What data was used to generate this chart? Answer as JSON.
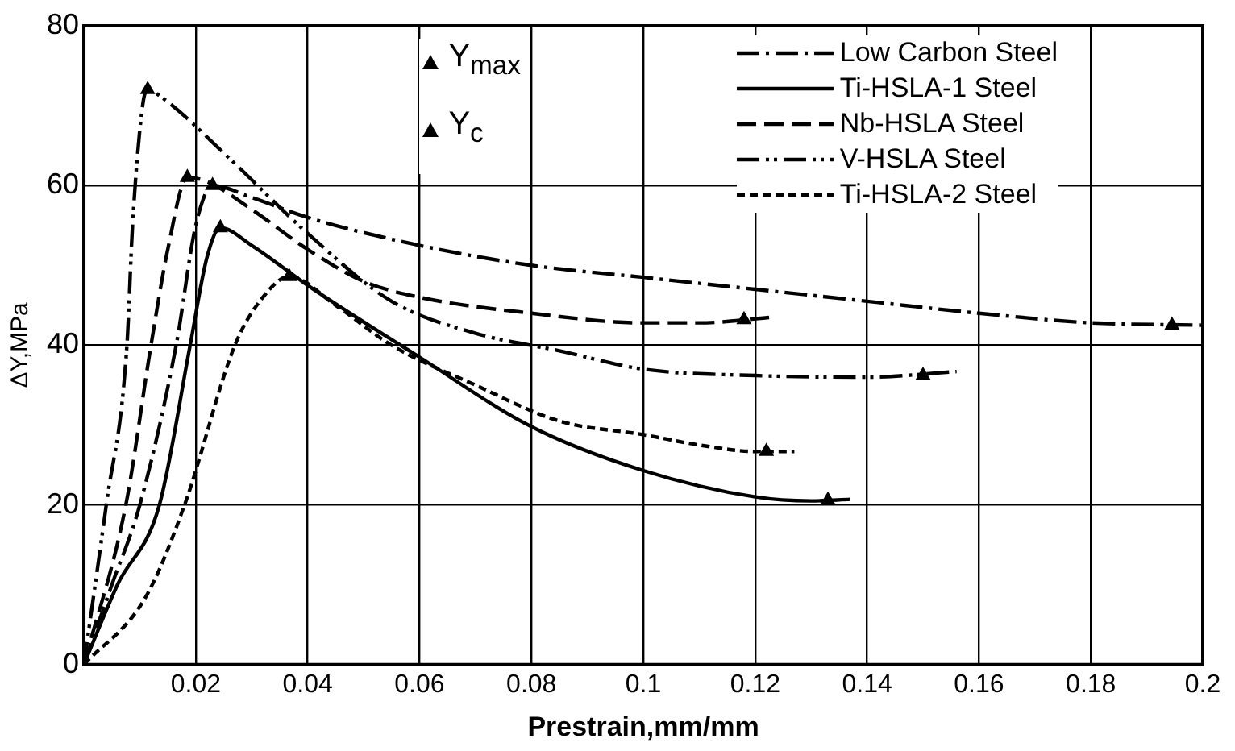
{
  "chart_data": {
    "type": "line",
    "xlabel": "Prestrain,mm/mm",
    "ylabel": "ΔY,MPa",
    "xlim": [
      0,
      0.2
    ],
    "xticks": [
      {
        "value": 0,
        "label": null
      },
      0.02,
      0.04,
      0.06,
      0.08,
      0.1,
      0.12,
      0.14,
      0.16,
      0.18,
      0.2
    ],
    "ylim": [
      0,
      80
    ],
    "yticks": [
      0,
      20,
      40,
      60,
      80
    ],
    "grid": true,
    "legend": "top right",
    "marker": "none",
    "series": [
      {
        "name": "Low Carbon Steel",
        "color": "#000000",
        "line_style": "dash-dot",
        "x": [
          0,
          0.005,
          0.01,
          0.0165,
          0.02,
          0.023,
          0.03,
          0.04,
          0.06,
          0.08,
          0.1,
          0.12,
          0.14,
          0.16,
          0.18,
          0.2
        ],
        "values": [
          0,
          10,
          20,
          40,
          55,
          60,
          58.5,
          56,
          52.5,
          50,
          48.5,
          47,
          45.5,
          44,
          42.8,
          42.5
        ]
      },
      {
        "name": "Ti-HSLA-1 Steel",
        "color": "#000000",
        "line_style": "solid",
        "x": [
          0,
          0.006,
          0.0135,
          0.019,
          0.022,
          0.0244,
          0.03,
          0.04,
          0.06,
          0.08,
          0.1,
          0.12,
          0.13,
          0.137
        ],
        "values": [
          0,
          10,
          20,
          40,
          51,
          54.7,
          52.5,
          47.5,
          38.5,
          29.8,
          24.3,
          21,
          20.5,
          20.7
        ]
      },
      {
        "name": "Nb-HSLA Steel",
        "color": "#000000",
        "line_style": "long-dashed",
        "x": [
          0,
          0.0075,
          0.012,
          0.015,
          0.0185,
          0.022,
          0.03,
          0.04,
          0.05,
          0.06,
          0.08,
          0.1,
          0.11,
          0.123
        ],
        "values": [
          0,
          20,
          40,
          52,
          61,
          60.5,
          57,
          52,
          48,
          46,
          44,
          42.8,
          42.8,
          43.5
        ]
      },
      {
        "name": "V-HSLA Steel",
        "color": "#000000",
        "line_style": "dash-dot-dot",
        "x": [
          0,
          0.004,
          0.0077,
          0.0087,
          0.0105,
          0.0114,
          0.014,
          0.026,
          0.04,
          0.055,
          0.07,
          0.085,
          0.1,
          0.12,
          0.14,
          0.156
        ],
        "values": [
          0,
          20,
          40,
          55,
          70,
          72,
          71,
          63.4,
          54,
          45.5,
          41.5,
          39.3,
          37,
          36.2,
          36,
          36.7
        ]
      },
      {
        "name": "Ti-HSLA-2 Steel",
        "color": "#000000",
        "line_style": "dashed",
        "x": [
          0,
          0.011,
          0.018,
          0.027,
          0.032,
          0.0367,
          0.045,
          0.055,
          0.07,
          0.085,
          0.1,
          0.11,
          0.12,
          0.127
        ],
        "values": [
          0,
          8.4,
          20,
          40,
          46,
          48.6,
          45,
          40,
          35,
          30.5,
          28.8,
          27.5,
          26.7,
          26.7
        ]
      },
      {
        "name": "Y$_{max}$",
        "type": "scatter",
        "color": "#000000",
        "marker": "triangle",
        "x": [
          0.0114,
          0.0185,
          0.023,
          0.0244,
          0.0367
        ],
        "values": [
          72,
          61,
          60,
          54.7,
          48.6
        ]
      },
      {
        "name": "Y$_{c}$",
        "type": "scatter",
        "color": "#000000",
        "marker": "triangle",
        "x": [
          0.118,
          0.122,
          0.133,
          0.15,
          0.1945
        ],
        "values": [
          43.2,
          26.7,
          20.6,
          36.2,
          42.5
        ]
      }
    ]
  }
}
